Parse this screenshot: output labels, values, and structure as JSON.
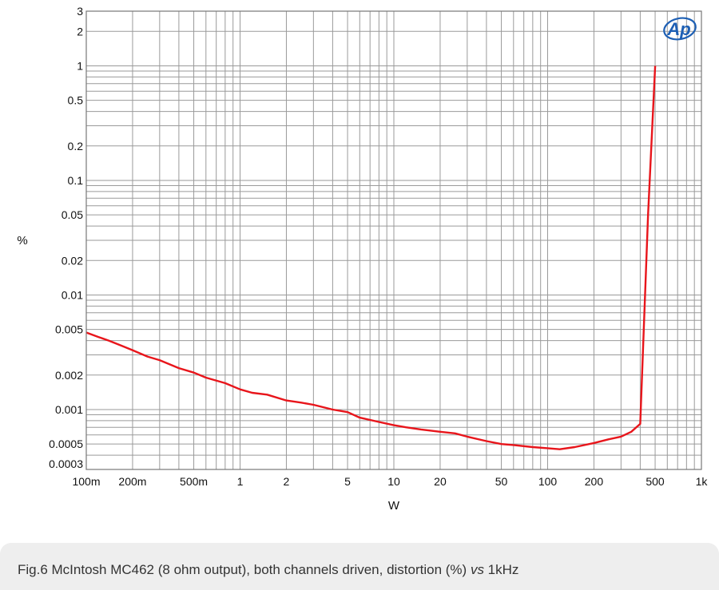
{
  "chart_data": {
    "type": "line",
    "xscale": "log",
    "yscale": "log",
    "xlim": [
      0.1,
      1000
    ],
    "ylim": [
      0.0003,
      3
    ],
    "xlabel": "W",
    "ylabel": "%",
    "x_ticks": [
      {
        "v": 0.1,
        "label": "100m"
      },
      {
        "v": 0.2,
        "label": "200m"
      },
      {
        "v": 0.5,
        "label": "500m"
      },
      {
        "v": 1,
        "label": "1"
      },
      {
        "v": 2,
        "label": "2"
      },
      {
        "v": 5,
        "label": "5"
      },
      {
        "v": 10,
        "label": "10"
      },
      {
        "v": 20,
        "label": "20"
      },
      {
        "v": 50,
        "label": "50"
      },
      {
        "v": 100,
        "label": "100"
      },
      {
        "v": 200,
        "label": "200"
      },
      {
        "v": 500,
        "label": "500"
      },
      {
        "v": 1000,
        "label": "1k"
      }
    ],
    "y_ticks": [
      {
        "v": 3,
        "label": "3"
      },
      {
        "v": 2,
        "label": "2"
      },
      {
        "v": 1,
        "label": "1"
      },
      {
        "v": 0.5,
        "label": "0.5"
      },
      {
        "v": 0.2,
        "label": "0.2"
      },
      {
        "v": 0.1,
        "label": "0.1"
      },
      {
        "v": 0.05,
        "label": "0.05"
      },
      {
        "v": 0.02,
        "label": "0.02"
      },
      {
        "v": 0.01,
        "label": "0.01"
      },
      {
        "v": 0.005,
        "label": "0.005"
      },
      {
        "v": 0.002,
        "label": "0.002"
      },
      {
        "v": 0.001,
        "label": "0.001"
      },
      {
        "v": 0.0005,
        "label": "0.0005"
      },
      {
        "v": 0.0003,
        "label": "0.0003"
      }
    ],
    "grid": true,
    "series": [
      {
        "color": "#e8151b",
        "x": [
          0.1,
          0.12,
          0.14,
          0.17,
          0.2,
          0.25,
          0.3,
          0.4,
          0.5,
          0.6,
          0.8,
          1.0,
          1.2,
          1.5,
          2,
          2.5,
          3,
          4,
          5,
          6,
          8,
          10,
          12,
          15,
          20,
          25,
          30,
          40,
          50,
          60,
          80,
          100,
          120,
          150,
          200,
          250,
          300,
          350,
          400,
          450,
          500
        ],
        "y": [
          0.0047,
          0.0043,
          0.004,
          0.0036,
          0.0033,
          0.0029,
          0.0027,
          0.0023,
          0.0021,
          0.0019,
          0.0017,
          0.0015,
          0.0014,
          0.00135,
          0.0012,
          0.00115,
          0.0011,
          0.001,
          0.00095,
          0.00085,
          0.00078,
          0.00073,
          0.0007,
          0.00067,
          0.00064,
          0.00062,
          0.00058,
          0.00053,
          0.0005,
          0.00049,
          0.00047,
          0.00046,
          0.00045,
          0.00047,
          0.00051,
          0.00055,
          0.00058,
          0.00064,
          0.00075,
          0.05,
          1.0
        ]
      }
    ]
  },
  "logo": {
    "text": "Ap",
    "color": "#1d5fb4"
  },
  "caption": {
    "prefix": "Fig.6 McIntosh MC462 (8 ohm output), both channels driven, distortion (%) ",
    "italic": "vs",
    "suffix": " 1kHz"
  }
}
